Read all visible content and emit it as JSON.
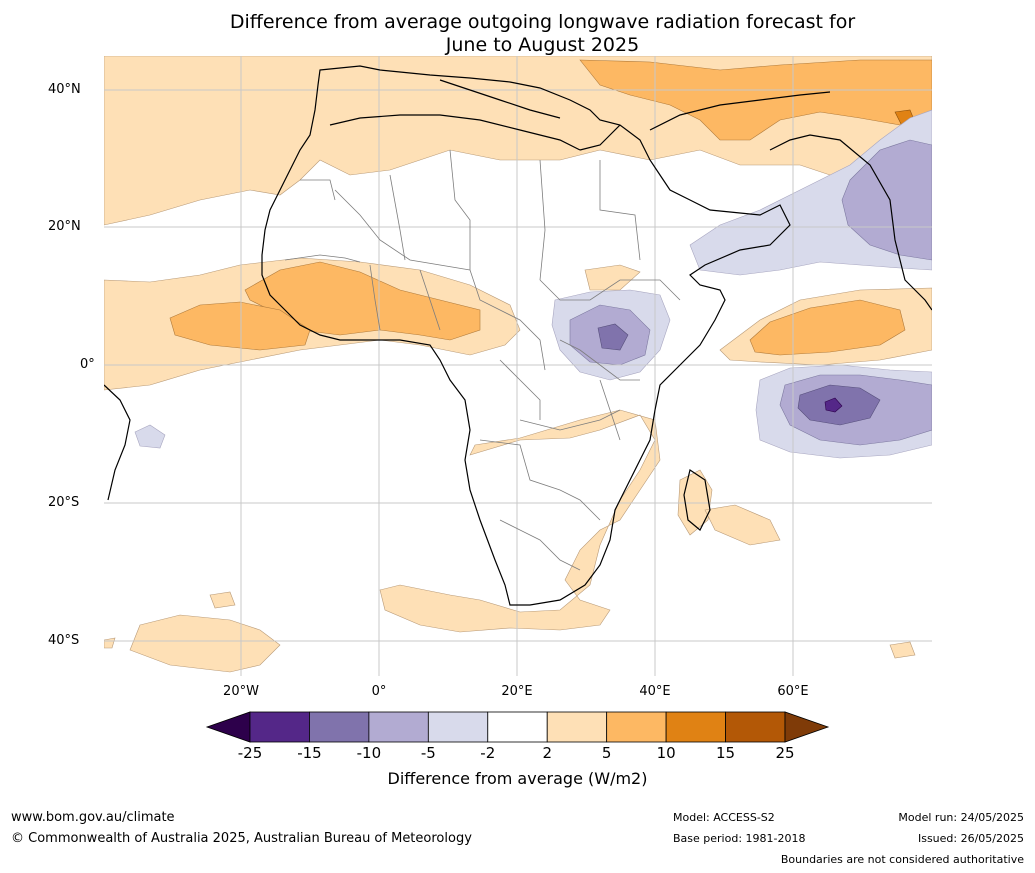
{
  "title": {
    "line1": "Difference from average outgoing longwave radiation forecast for",
    "line2": "June to August 2025"
  },
  "map": {
    "lat_labels": [
      "40°N",
      "20°N",
      "0°",
      "20°S",
      "40°S"
    ],
    "lon_labels": [
      "20°W",
      "0°",
      "20°E",
      "40°E",
      "60°E"
    ],
    "lat_values": [
      40,
      20,
      0,
      -20,
      -40
    ],
    "lon_values": [
      -20,
      0,
      20,
      40,
      60
    ],
    "extent": {
      "lon_min": -40,
      "lon_max": 80,
      "lat_min": -45,
      "lat_max": 45
    },
    "gridlines": true
  },
  "colorbar": {
    "ticks": [
      "-25",
      "-15",
      "-10",
      "-5",
      "-2",
      "2",
      "5",
      "10",
      "15",
      "25"
    ],
    "colors": [
      "#2d004b",
      "#542788",
      "#8073ac",
      "#b2abd2",
      "#d8daeb",
      "#ffffff",
      "#fee0b6",
      "#fdb863",
      "#e08214",
      "#b35806",
      "#7f3b08"
    ],
    "label": "Difference from average (W/m2)"
  },
  "footer": {
    "website": "www.bom.gov.au/climate",
    "copyright": "© Commonwealth of Australia 2025, Australian Bureau of Meteorology",
    "model": "Model: ACCESS-S2",
    "base_period": "Base period: 1981-2018",
    "model_run": "Model run: 24/05/2025",
    "issued": "Issued: 26/05/2025",
    "disclaimer": "Boundaries are not considered authoritative"
  }
}
